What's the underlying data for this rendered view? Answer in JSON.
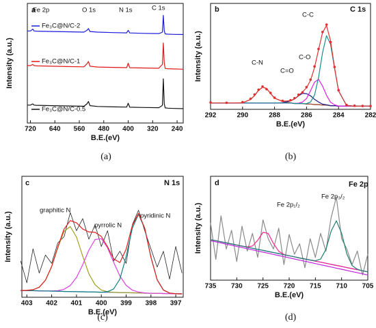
{
  "chart_data": [
    {
      "type": "line",
      "panel_label": "a",
      "caption": "(a)",
      "xlabel": "B.E.(eV)",
      "ylabel": "Intensity (a.u.)",
      "annotations": [
        "Fe 2p",
        "O 1s",
        "N 1s",
        "C 1s"
      ],
      "xlim": [
        730,
        220
      ],
      "xticks": [
        720,
        640,
        560,
        480,
        400,
        320,
        240
      ],
      "ylim": [
        0,
        100
      ],
      "x": [
        730,
        720,
        712,
        708,
        700,
        650,
        600,
        545,
        535,
        530,
        525,
        500,
        450,
        405,
        400,
        395,
        350,
        300,
        292,
        288,
        285,
        282,
        279,
        270,
        250,
        220
      ],
      "series": [
        {
          "name": "Fe₃C@N/C-2",
          "color": "#1a1adc",
          "values": [
            77,
            77,
            78.5,
            77,
            76.8,
            76.5,
            76.3,
            76,
            77.5,
            79,
            76.5,
            76,
            75.6,
            75.4,
            77.5,
            75.3,
            75,
            74.8,
            75.5,
            76,
            90,
            77,
            74.5,
            74.3,
            74.1,
            74
          ]
        },
        {
          "name": "Fe₃C@N/C-1",
          "color": "#e01818",
          "values": [
            48,
            48,
            49,
            48,
            47.8,
            47.5,
            47.2,
            47,
            49.5,
            51.5,
            47.5,
            46.8,
            46.5,
            46.3,
            50,
            46.2,
            46,
            45.8,
            48,
            49,
            67,
            50,
            45.6,
            45.4,
            45.2,
            45
          ]
        },
        {
          "name": "Fe₃C@N/C-0.5",
          "color": "#111111",
          "values": [
            15,
            15,
            16,
            15,
            14.8,
            14.5,
            14.3,
            14,
            16,
            18,
            14.5,
            13.8,
            13.5,
            13.3,
            16.5,
            13.2,
            13,
            12.8,
            14,
            15,
            37,
            16,
            12.6,
            12.4,
            12.2,
            12
          ]
        }
      ]
    },
    {
      "type": "line",
      "panel_label": "b",
      "caption": "(b)",
      "title": "C 1s",
      "xlabel": "B.E.(eV)",
      "ylabel": "Intensity (a.u.)",
      "annotations": [
        "C-C",
        "C-O",
        "C=O",
        "C-N"
      ],
      "xlim": [
        292,
        282
      ],
      "xticks": [
        292,
        290,
        288,
        286,
        284,
        282
      ],
      "ylim": [
        0,
        100
      ],
      "x": [
        292,
        291,
        290,
        289.5,
        289.25,
        289,
        288.75,
        288.5,
        288.25,
        288,
        287.5,
        287,
        286.75,
        286.5,
        286.25,
        286,
        285.75,
        285.5,
        285.25,
        285,
        284.75,
        284.5,
        284.25,
        284,
        283.5,
        283,
        282.5,
        282
      ],
      "series": [
        {
          "color": "#2020a0",
          "values": [
            6,
            6,
            6,
            6,
            6,
            6,
            6,
            6,
            6,
            6,
            6,
            6,
            5.5,
            5.5,
            5.5,
            5,
            5,
            4.5,
            4.5,
            4,
            4,
            3.5,
            3.5,
            3,
            3,
            3,
            3,
            3
          ]
        },
        {
          "color": "#b05020",
          "values": [
            6,
            6,
            6.1,
            9.3,
            13,
            18,
            20.9,
            19.7,
            15,
            10.5,
            7.4,
            6.2,
            5.5,
            5.5,
            5.5,
            5,
            5,
            4.5,
            4.5,
            4,
            4,
            3.5,
            3.5,
            3,
            3,
            3,
            3,
            3
          ]
        },
        {
          "color": "#1a1a8c",
          "values": [
            6,
            6,
            6,
            6,
            6,
            6,
            6,
            6,
            6,
            6,
            6.2,
            8,
            9.8,
            12.8,
            15.1,
            14.8,
            12.8,
            9.4,
            6.9,
            4.9,
            4.3,
            3.5,
            3.5,
            3,
            3,
            3,
            3,
            3
          ]
        },
        {
          "color": "#e020e0",
          "values": [
            6,
            6,
            6,
            6,
            6,
            6,
            6,
            6,
            6,
            6,
            6,
            6,
            5.5,
            5.8,
            6.9,
            10.2,
            17.7,
            25.7,
            28.3,
            22,
            13.3,
            6.7,
            4.3,
            3.1,
            3,
            3,
            3,
            3
          ]
        },
        {
          "color": "#109090",
          "values": [
            6,
            6,
            6,
            6,
            6,
            6,
            6,
            6,
            6,
            6,
            6,
            6,
            5.5,
            5.5,
            5.5,
            5.3,
            7,
            13.4,
            30.2,
            53.5,
            69.5,
            61.5,
            38.5,
            17.5,
            3.7,
            3,
            3,
            3
          ]
        },
        {
          "color": "#e03030",
          "values": [
            6,
            6,
            6.1,
            9.3,
            13,
            18,
            20.9,
            19.7,
            15,
            10.5,
            7.6,
            8.2,
            9.8,
            13.1,
            16.5,
            20.3,
            27.5,
            39.5,
            56.4,
            72.4,
            79.1,
            64.7,
            39.3,
            17.6,
            3.7,
            3,
            3,
            3
          ]
        },
        {
          "color": "#e03030",
          "style": "markers",
          "values": [
            6.5,
            6.2,
            6.8,
            10,
            14,
            18.5,
            21.5,
            19,
            15.5,
            11,
            8,
            8.6,
            10.5,
            13.8,
            16,
            21,
            28,
            40.5,
            57,
            73,
            80,
            63.5,
            40,
            18,
            4.2,
            3.4,
            3.2,
            3.1
          ]
        }
      ]
    },
    {
      "type": "line",
      "panel_label": "c",
      "caption": "(c)",
      "title": "N 1s",
      "xlabel": "B.E.(eV)",
      "ylabel": "Intensity (a.u.)",
      "annotations": [
        "graphitic N",
        "pyrrolic N",
        "pyridinic N"
      ],
      "xlim": [
        403.2,
        396.7
      ],
      "xticks": [
        403,
        402,
        401,
        400,
        399,
        398,
        397
      ],
      "ylim": [
        0,
        100
      ],
      "x": [
        403.25,
        403,
        402.75,
        402.5,
        402.25,
        402,
        401.75,
        401.5,
        401.25,
        401,
        400.75,
        400.5,
        400.25,
        400,
        399.75,
        399.5,
        399.25,
        399,
        398.75,
        398.5,
        398.25,
        398,
        397.75,
        397.5,
        397.25,
        397,
        396.75
      ],
      "series": [
        {
          "color": "#222222",
          "values": [
            30,
            12,
            40,
            20,
            35,
            28,
            45,
            50,
            70,
            55,
            65,
            48,
            60,
            42,
            55,
            30,
            38,
            28,
            60,
            72,
            55,
            40,
            25,
            38,
            15,
            42,
            20
          ]
        },
        {
          "color": "#4060e0",
          "values": [
            5.6,
            5.5,
            5.4,
            5.3,
            5.2,
            5.1,
            5.0,
            4.8,
            4.7,
            4.6,
            4.5,
            4.4,
            4.3,
            4.2,
            4.1,
            4.0,
            3.9,
            3.8,
            3.7,
            3.6,
            3.4,
            3.3,
            3.2,
            3.1,
            3.0,
            2.9,
            2.8
          ]
        },
        {
          "color": "#a0a020",
          "values": [
            5.6,
            5.7,
            6.2,
            8.3,
            14.1,
            25.4,
            41,
            54.6,
            58.4,
            49.7,
            34,
            19.4,
            10.3,
            6,
            4.5,
            4.0,
            3.9,
            3.8,
            3.7,
            3.6,
            3.4,
            3.3,
            3.2,
            3.1,
            3.0,
            2.9,
            2.8
          ]
        },
        {
          "color": "#e040e0",
          "values": [
            5.6,
            5.5,
            5.4,
            5.3,
            5.2,
            5.2,
            5.5,
            6.6,
            9.7,
            16.4,
            26.9,
            39,
            47.7,
            48.5,
            40.9,
            28.8,
            17.5,
            9.9,
            5.9,
            4.3,
            3.6,
            3.3,
            3.2,
            3.1,
            3.0,
            2.9,
            2.8
          ]
        },
        {
          "color": "#108080",
          "values": [
            5.6,
            5.5,
            5.4,
            5.3,
            5.2,
            5.1,
            5.0,
            4.8,
            4.7,
            4.6,
            4.5,
            4.4,
            4.3,
            4.2,
            4.6,
            6.9,
            15.1,
            33.6,
            57.2,
            68.6,
            56.9,
            33.1,
            14.4,
            6.0,
            3.5,
            2.9,
            2.8
          ]
        },
        {
          "color": "#e02020",
          "values": [
            5.6,
            5.7,
            6.2,
            8.3,
            14.1,
            25.5,
            41.5,
            56.4,
            63.4,
            61.5,
            56.4,
            54,
            53.7,
            50.3,
            41.8,
            31.7,
            28.7,
            39.7,
            59.4,
            69.3,
            57.1,
            33.1,
            14.4,
            6.0,
            3.5,
            2.9,
            2.8
          ]
        }
      ]
    },
    {
      "type": "line",
      "panel_label": "d",
      "caption": "(d)",
      "title": "Fe 2p",
      "xlabel": "B.E.(eV)",
      "ylabel": "Intensity (a.u.)",
      "annotations": [
        "Fe 2p₁/₂",
        "Fe 2p₃/₂"
      ],
      "xlim": [
        735,
        705
      ],
      "xticks": [
        735,
        730,
        725,
        720,
        715,
        710,
        705
      ],
      "ylim": [
        0,
        100
      ],
      "x": [
        735,
        734,
        733,
        732,
        731,
        730,
        729,
        728,
        727,
        726,
        725,
        724,
        723,
        722,
        721,
        720,
        719,
        718,
        717,
        716,
        715,
        714,
        713,
        712,
        711,
        710,
        709,
        708,
        707,
        706,
        705
      ],
      "series": [
        {
          "color": "#8a8a8a",
          "values": [
            55,
            20,
            62,
            30,
            48,
            18,
            52,
            28,
            45,
            22,
            58,
            40,
            30,
            50,
            15,
            44,
            25,
            35,
            12,
            40,
            22,
            45,
            28,
            60,
            80,
            40,
            30,
            15,
            28,
            5,
            25
          ]
        },
        {
          "color": "#2040e0",
          "values": [
            39,
            38,
            36.9,
            35.9,
            34.9,
            33.8,
            32.8,
            31.8,
            30.7,
            29.7,
            28.7,
            27.6,
            26.6,
            25.6,
            24.5,
            23.5,
            22.5,
            21.4,
            20.4,
            19.4,
            18.3,
            17.3,
            16.3,
            15.2,
            14.2,
            13.2,
            12.1,
            11.1,
            10.1,
            9.0,
            8.0
          ]
        },
        {
          "color": "#c020e0",
          "values": [
            38,
            36.9,
            35.8,
            34.7,
            33.6,
            32.5,
            31.4,
            30.3,
            29.2,
            28.1,
            27,
            25.9,
            24.8,
            23.7,
            22.6,
            21.5,
            20.4,
            19.3,
            18.2,
            17.1,
            16,
            14.9,
            13.8,
            12.7,
            11.6,
            10.5,
            9.4,
            8.3,
            7.2,
            6.1,
            5
          ]
        },
        {
          "color": "#ff2090",
          "values": [
            39,
            38,
            36.9,
            35.9,
            34.9,
            33.8,
            32.8,
            32.1,
            32.9,
            38.4,
            46.1,
            45,
            35.3,
            27.8,
            24.8,
            23.5,
            22.5,
            21.4,
            20.4,
            19.4,
            18.3,
            17.3,
            16.3,
            15.2,
            14.2,
            13.2,
            12.1,
            11.1,
            10.1,
            9.0,
            8.0
          ]
        },
        {
          "color": "#208070",
          "values": [
            39,
            38,
            36.9,
            35.9,
            34.9,
            33.8,
            32.8,
            31.8,
            30.7,
            29.7,
            28.7,
            27.6,
            26.6,
            25.6,
            24.5,
            23.5,
            22.5,
            21.4,
            20.4,
            19.4,
            18.7,
            20.3,
            29.5,
            47.2,
            57.2,
            45.2,
            25.3,
            14.1,
            10.5,
            9.0,
            8.0
          ]
        }
      ]
    }
  ]
}
